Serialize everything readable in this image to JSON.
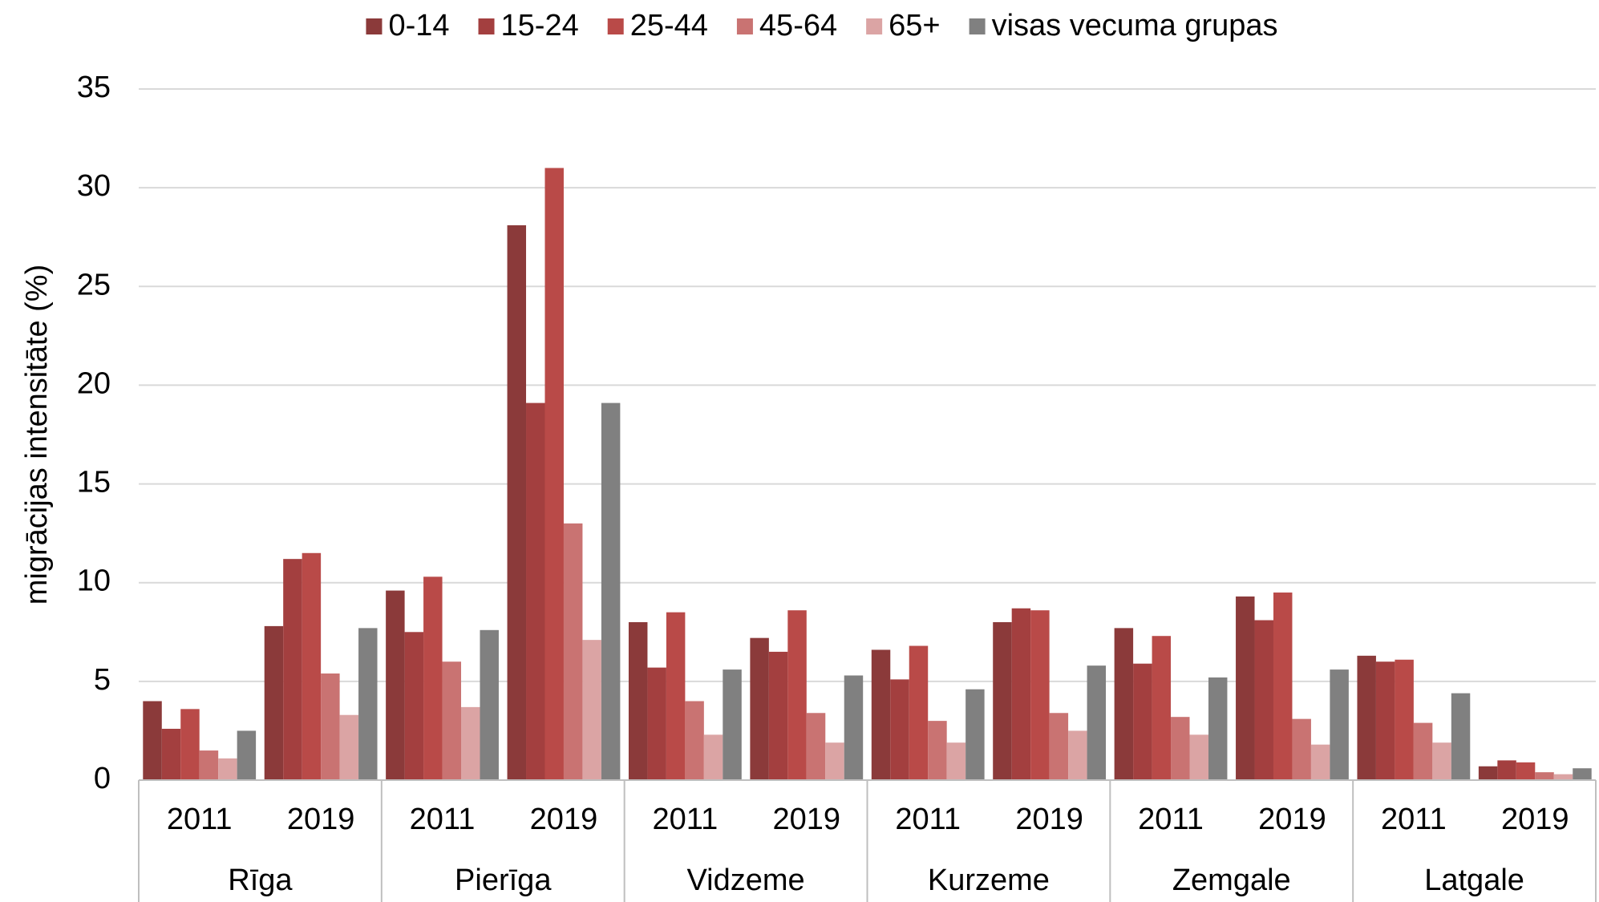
{
  "chart_data": {
    "type": "bar",
    "y_axis_label": "migrācijas intensitāte (%)",
    "categories": [
      "2011",
      "2019",
      "2011",
      "2019",
      "2011",
      "2019",
      "2011",
      "2019",
      "2011",
      "2019",
      "2011",
      "2019"
    ],
    "groups": [
      "Rīga",
      "Pierīga",
      "Vidzeme",
      "Kurzeme",
      "Zemgale",
      "Latgale"
    ],
    "series": [
      {
        "name": "0-14",
        "color": "#8b3a3a",
        "values": [
          4.0,
          7.8,
          9.6,
          28.1,
          8.0,
          7.2,
          6.6,
          8.0,
          7.7,
          9.3,
          6.3,
          0.7
        ]
      },
      {
        "name": "15-24",
        "color": "#a33f3f",
        "values": [
          2.6,
          11.2,
          7.5,
          19.1,
          5.7,
          6.5,
          5.1,
          8.7,
          5.9,
          8.1,
          6.0,
          1.0
        ]
      },
      {
        "name": "25-44",
        "color": "#b94a48",
        "values": [
          3.6,
          11.5,
          10.3,
          31.0,
          8.5,
          8.6,
          6.8,
          8.6,
          7.3,
          9.5,
          6.1,
          0.9
        ]
      },
      {
        "name": "45-64",
        "color": "#c97372",
        "values": [
          1.5,
          5.4,
          6.0,
          13.0,
          4.0,
          3.4,
          3.0,
          3.4,
          3.2,
          3.1,
          2.9,
          0.4
        ]
      },
      {
        "name": "65+",
        "color": "#dba4a4",
        "values": [
          1.1,
          3.3,
          3.7,
          7.1,
          2.3,
          1.9,
          1.9,
          2.5,
          2.3,
          1.8,
          1.9,
          0.3
        ]
      },
      {
        "name": "visas vecuma grupas",
        "color": "#808080",
        "values": [
          2.5,
          7.7,
          7.6,
          19.1,
          5.6,
          5.3,
          4.6,
          5.8,
          5.2,
          5.6,
          4.4,
          0.6
        ]
      }
    ],
    "ylim": [
      0,
      35
    ],
    "yticks": [
      0,
      5,
      10,
      15,
      20,
      25,
      30,
      35
    ],
    "grid": true,
    "legend": "top"
  }
}
